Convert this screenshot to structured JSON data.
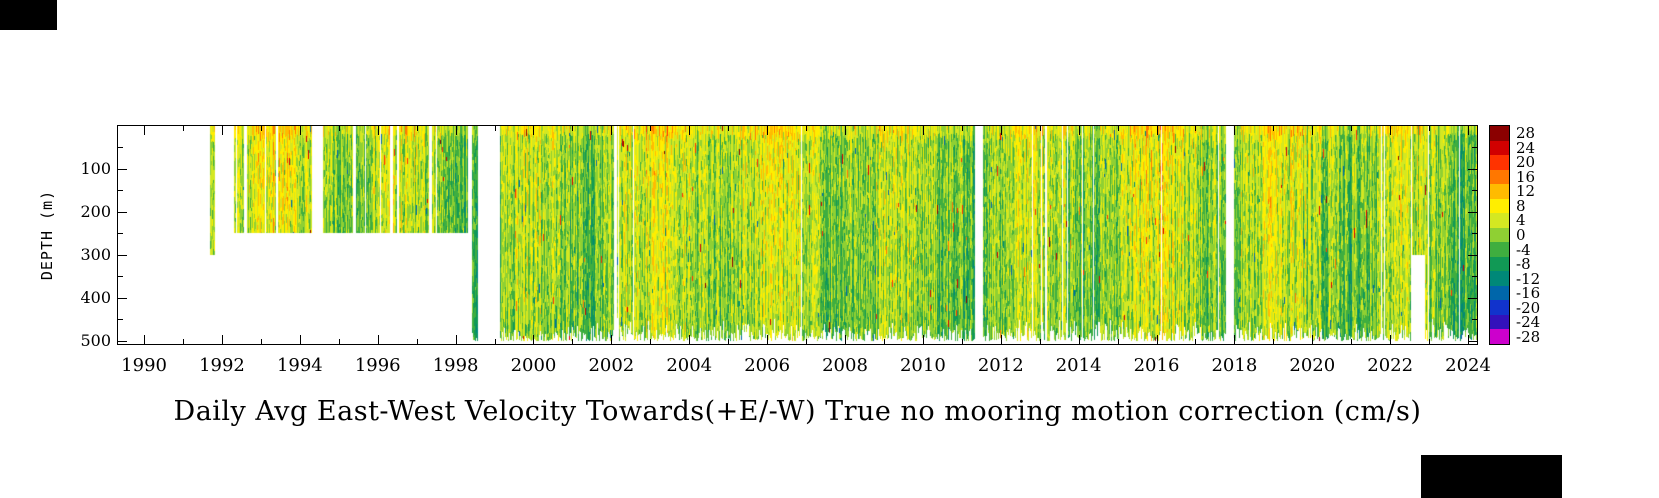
{
  "figure": {
    "background": "#ffffff",
    "redactions": [
      "top-left",
      "bottom-right"
    ]
  },
  "chart_data": {
    "type": "heatmap",
    "title": "Daily Avg East-West Velocity Towards(+E/-W) True no mooring motion correction (cm/s)",
    "xlabel": "",
    "ylabel": "DEPTH (m)",
    "x_axis": {
      "units": "year",
      "range": [
        1989.33,
        2024.23
      ],
      "major_tick_years": [
        1990,
        1992,
        1994,
        1996,
        1998,
        2000,
        2002,
        2004,
        2006,
        2008,
        2010,
        2012,
        2014,
        2016,
        2018,
        2020,
        2022,
        2024
      ],
      "major_tick_labels": [
        "1990",
        "1992",
        "1994",
        "1996",
        "1998",
        "2000",
        "2002",
        "2004",
        "2006",
        "2008",
        "2010",
        "2012",
        "2014",
        "2016",
        "2018",
        "2020",
        "2022",
        "2024"
      ],
      "minor_tick_years": [
        1991,
        1993,
        1995,
        1997,
        1999,
        2001,
        2003,
        2005,
        2007,
        2009,
        2011,
        2013,
        2015,
        2017,
        2019,
        2021,
        2023
      ]
    },
    "y_axis": {
      "units": "m",
      "range": [
        0,
        507
      ],
      "major_ticks": [
        100,
        200,
        300,
        400,
        500
      ],
      "major_tick_labels": [
        "100",
        "200",
        "300",
        "400",
        "500"
      ],
      "minor_ticks": [
        50,
        150,
        250,
        350,
        450
      ]
    },
    "colorbar": {
      "units": "cm/s",
      "levels": [
        28,
        24,
        20,
        16,
        12,
        8,
        4,
        0,
        -4,
        -8,
        -12,
        -16,
        -20,
        -24,
        -28
      ],
      "labels": [
        "28",
        "24",
        "20",
        "16",
        "12",
        "8",
        "4",
        "0",
        "-4",
        "-8",
        "-12",
        "-16",
        "-20",
        "-24",
        "-28"
      ],
      "colors": [
        "#8b0000",
        "#d10000",
        "#ff3300",
        "#ff7700",
        "#ffbb00",
        "#ffee00",
        "#d4e822",
        "#8fd033",
        "#3fae3f",
        "#119955",
        "#008878",
        "#0066aa",
        "#1133cc",
        "#3311bb",
        "#cc00cc"
      ]
    },
    "data_coverage_segments": [
      {
        "start": 1991.7,
        "end": 1991.8,
        "depth_min": 0,
        "depth_max": 300
      },
      {
        "start": 1992.3,
        "end": 1992.55,
        "depth_min": 0,
        "depth_max": 250
      },
      {
        "start": 1992.65,
        "end": 1993.35,
        "depth_min": 0,
        "depth_max": 250
      },
      {
        "start": 1993.45,
        "end": 1994.3,
        "depth_min": 0,
        "depth_max": 250
      },
      {
        "start": 1994.6,
        "end": 1995.35,
        "depth_min": 0,
        "depth_max": 250
      },
      {
        "start": 1995.45,
        "end": 1996.3,
        "depth_min": 0,
        "depth_max": 250
      },
      {
        "start": 1996.4,
        "end": 1997.3,
        "depth_min": 0,
        "depth_max": 250
      },
      {
        "start": 1997.4,
        "end": 1998.3,
        "depth_min": 0,
        "depth_max": 250
      },
      {
        "start": 1998.42,
        "end": 1998.56,
        "depth_min": 0,
        "depth_max": 500
      },
      {
        "start": 1999.15,
        "end": 2002.05,
        "depth_min": 0,
        "depth_max": 500
      },
      {
        "start": 2002.15,
        "end": 2011.3,
        "depth_min": 0,
        "depth_max": 500
      },
      {
        "start": 2011.55,
        "end": 2013.1,
        "depth_min": 0,
        "depth_max": 500
      },
      {
        "start": 2013.2,
        "end": 2017.75,
        "depth_min": 0,
        "depth_max": 500
      },
      {
        "start": 2018.0,
        "end": 2022.5,
        "depth_min": 0,
        "depth_max": 500
      },
      {
        "start": 2022.55,
        "end": 2022.9,
        "depth_min": 0,
        "depth_max": 300
      },
      {
        "start": 2022.9,
        "end": 2024.2,
        "depth_min": 0,
        "depth_max": 500
      }
    ],
    "typical_value_range_cms": [
      -8,
      12
    ],
    "legend_position": "right",
    "grid": false
  }
}
